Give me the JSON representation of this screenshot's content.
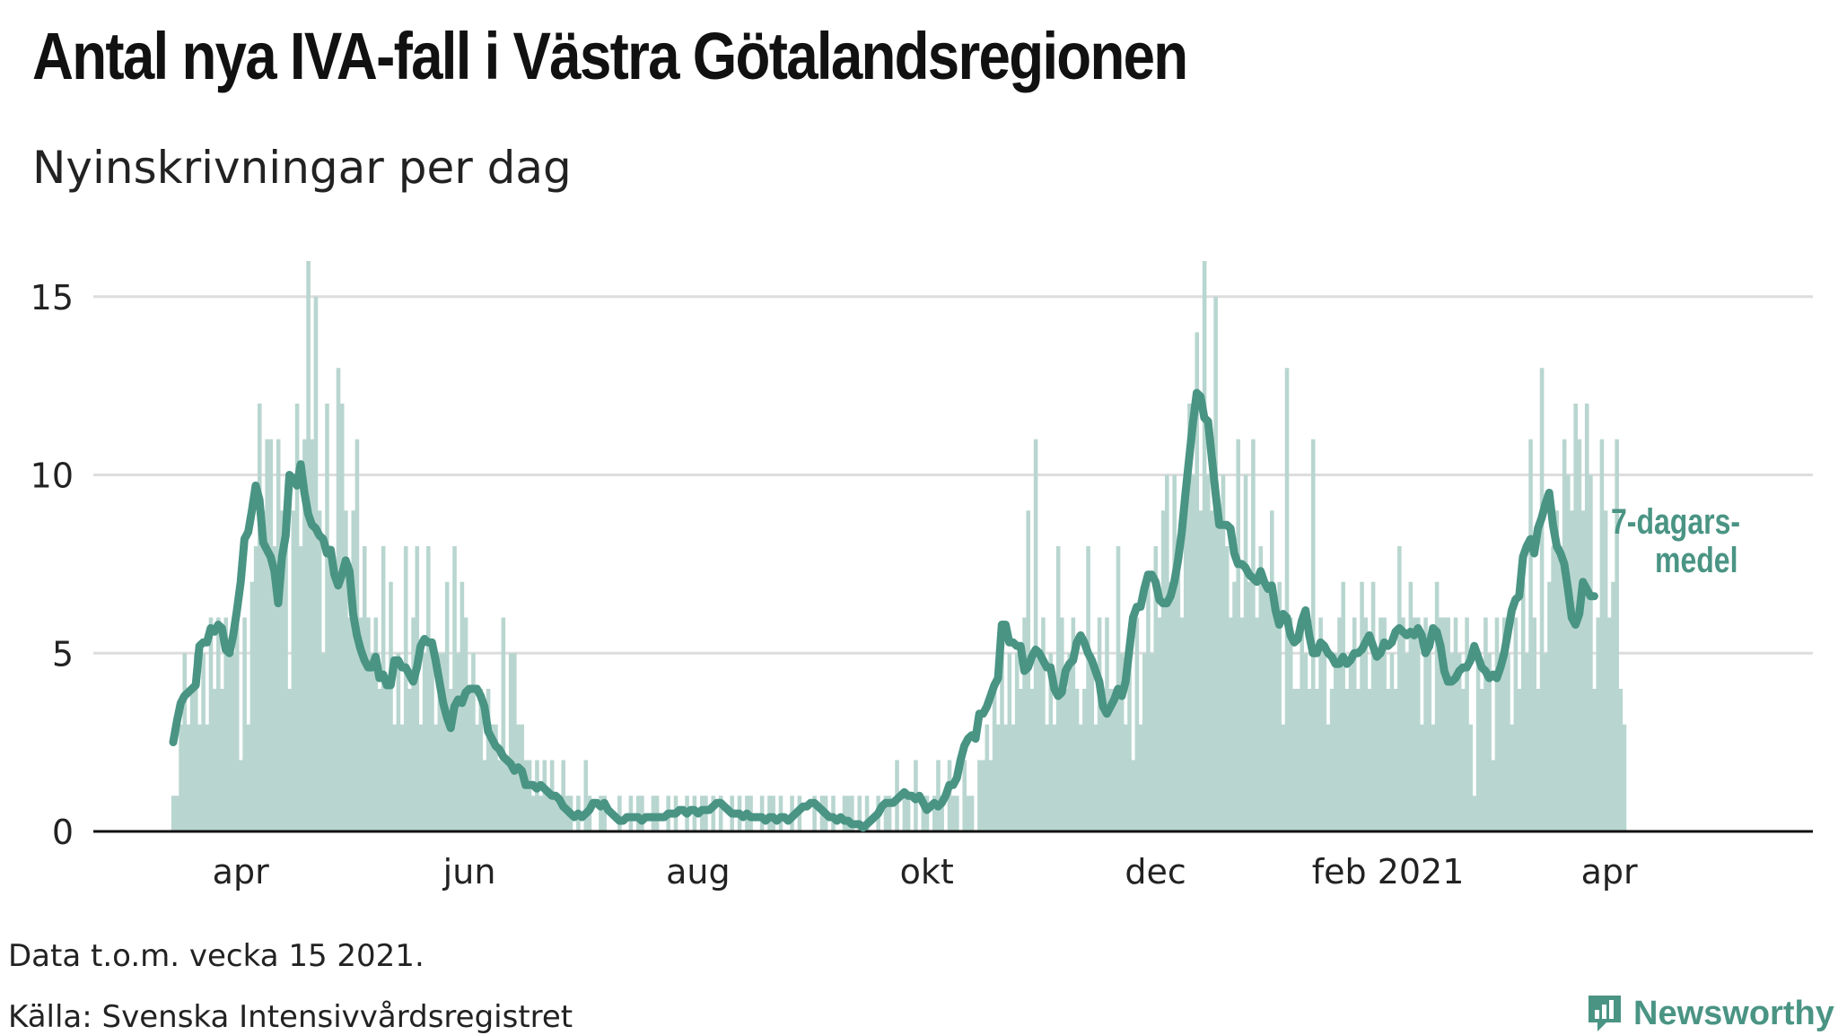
{
  "title": "Antal nya IVA-fall i Västra Götalandsregionen",
  "subtitle": "Nyinskrivningar per dag",
  "chart_data": {
    "type": "bar+line",
    "title": "Antal nya IVA-fall i Västra Götalandsregionen",
    "subtitle": "Nyinskrivningar per dag",
    "xlabel": "",
    "ylabel": "",
    "ylim": [
      0,
      16
    ],
    "yticks": [
      0,
      5,
      10,
      15
    ],
    "xticks": [
      {
        "label": "apr",
        "day": 18
      },
      {
        "label": "jun",
        "day": 79
      },
      {
        "label": "aug",
        "day": 140
      },
      {
        "label": "okt",
        "day": 201
      },
      {
        "label": "dec",
        "day": 262
      },
      {
        "label": "feb 2021",
        "day": 324
      },
      {
        "label": "apr",
        "day": 383
      }
    ],
    "day_range": [
      0,
      405
    ],
    "daily_series": {
      "name": "Nyinskrivningar per dag",
      "values": [
        1,
        1,
        3,
        5,
        3,
        4,
        5,
        3,
        5,
        3,
        6,
        4,
        6,
        4,
        6,
        5,
        5,
        6,
        2,
        6,
        3,
        7,
        8,
        12,
        9,
        11,
        11,
        8,
        11,
        9,
        8,
        4,
        9,
        12,
        8,
        11,
        16,
        11,
        15,
        9,
        5,
        12,
        8,
        7,
        13,
        12,
        9,
        6,
        9,
        11,
        6,
        8,
        6,
        5,
        6,
        4,
        8,
        4,
        7,
        3,
        5,
        3,
        8,
        4,
        6,
        8,
        3,
        5,
        8,
        5,
        3,
        5,
        5,
        7,
        4,
        8,
        5,
        7,
        6,
        4,
        5,
        3,
        4,
        2,
        4,
        3,
        3,
        2,
        6,
        2,
        5,
        5,
        3,
        3,
        2,
        2,
        1,
        2,
        1,
        2,
        1,
        2,
        1,
        1,
        2,
        1,
        1,
        0,
        1,
        0,
        2,
        1,
        0,
        0,
        1,
        1,
        0,
        0,
        0,
        1,
        0,
        0,
        1,
        0,
        1,
        1,
        0,
        0,
        1,
        1,
        0,
        0,
        1,
        0,
        1,
        0,
        0,
        1,
        0,
        1,
        0,
        1,
        1,
        0,
        1,
        0,
        1,
        0,
        0,
        1,
        0,
        1,
        0,
        1,
        1,
        0,
        0,
        1,
        0,
        1,
        1,
        0,
        1,
        0,
        0,
        1,
        0,
        1,
        0,
        0,
        0,
        1,
        0,
        1,
        1,
        0,
        1,
        0,
        0,
        1,
        1,
        1,
        0,
        1,
        0,
        1,
        0,
        0,
        1,
        0,
        1,
        1,
        0,
        2,
        0,
        1,
        1,
        0,
        2,
        0,
        1,
        1,
        0,
        1,
        2,
        1,
        0,
        2,
        1,
        1,
        0,
        2,
        1,
        1,
        0,
        2,
        2,
        3,
        2,
        4,
        3,
        5,
        3,
        5,
        3,
        5,
        4,
        6,
        9,
        4,
        11,
        5,
        6,
        3,
        5,
        3,
        8,
        6,
        4,
        5,
        6,
        4,
        3,
        4,
        8,
        5,
        3,
        6,
        4,
        6,
        4,
        4,
        8,
        5,
        3,
        5,
        2,
        6,
        3,
        5,
        7,
        5,
        8,
        6,
        9,
        10,
        7,
        10,
        8,
        6,
        9,
        12,
        10,
        14,
        9,
        16,
        10,
        9,
        15,
        9,
        10,
        8,
        6,
        7,
        11,
        6,
        10,
        7,
        11,
        6,
        8,
        7,
        7,
        9,
        6,
        7,
        3,
        13,
        6,
        4,
        4,
        6,
        5,
        4,
        11,
        4,
        6,
        5,
        3,
        4,
        5,
        6,
        7,
        4,
        5,
        6,
        4,
        7,
        6,
        4,
        7,
        5,
        6,
        6,
        4,
        5,
        4,
        8,
        6,
        5,
        7,
        6,
        6,
        3,
        6,
        5,
        3,
        7,
        6,
        6,
        6,
        5,
        6,
        5,
        4,
        6,
        3,
        1,
        5,
        4,
        6,
        5,
        2,
        6,
        5,
        6,
        5,
        3,
        6,
        4,
        7,
        5,
        11,
        6,
        4,
        13,
        5,
        7,
        8,
        9,
        8,
        11,
        10,
        9,
        12,
        11,
        9,
        12,
        10,
        4,
        6,
        11,
        9,
        6,
        7,
        11,
        4,
        3
      ],
      "color": "#b8d6cf"
    },
    "average_series": {
      "name": "7-dagarsmedel",
      "values": [
        2.5,
        3.1,
        3.6,
        3.8,
        3.9,
        4.0,
        4.1,
        5.2,
        5.3,
        5.3,
        5.7,
        5.6,
        5.8,
        5.7,
        5.1,
        5.0,
        5.5,
        6.2,
        7.0,
        8.2,
        8.4,
        9.0,
        9.7,
        9.3,
        8.1,
        7.9,
        7.7,
        7.3,
        6.4,
        7.7,
        8.3,
        10.0,
        9.9,
        9.7,
        10.3,
        9.5,
        8.9,
        8.6,
        8.5,
        8.3,
        8.2,
        7.8,
        7.9,
        7.2,
        6.9,
        7.2,
        7.6,
        7.3,
        6.1,
        5.5,
        5.1,
        4.8,
        4.6,
        4.6,
        4.9,
        4.3,
        4.4,
        4.1,
        4.1,
        4.8,
        4.8,
        4.6,
        4.6,
        4.4,
        4.2,
        4.6,
        5.2,
        5.4,
        5.3,
        5.3,
        4.8,
        4.2,
        3.6,
        3.2,
        2.9,
        3.5,
        3.7,
        3.6,
        3.9,
        4.0,
        4.0,
        4.0,
        3.8,
        3.5,
        2.8,
        2.6,
        2.4,
        2.3,
        2.1,
        2.0,
        1.9,
        1.7,
        1.8,
        1.7,
        1.3,
        1.3,
        1.3,
        1.2,
        1.3,
        1.2,
        1.1,
        1.0,
        1.0,
        0.9,
        0.7,
        0.6,
        0.5,
        0.4,
        0.5,
        0.4,
        0.5,
        0.6,
        0.8,
        0.8,
        0.7,
        0.8,
        0.6,
        0.5,
        0.4,
        0.3,
        0.3,
        0.4,
        0.4,
        0.4,
        0.4,
        0.3,
        0.4,
        0.4,
        0.4,
        0.4,
        0.4,
        0.4,
        0.5,
        0.5,
        0.5,
        0.6,
        0.6,
        0.5,
        0.6,
        0.6,
        0.5,
        0.6,
        0.6,
        0.6,
        0.7,
        0.8,
        0.8,
        0.7,
        0.6,
        0.5,
        0.5,
        0.5,
        0.4,
        0.5,
        0.4,
        0.4,
        0.4,
        0.4,
        0.3,
        0.4,
        0.4,
        0.3,
        0.4,
        0.4,
        0.3,
        0.4,
        0.5,
        0.6,
        0.7,
        0.7,
        0.8,
        0.8,
        0.7,
        0.6,
        0.5,
        0.4,
        0.4,
        0.3,
        0.4,
        0.3,
        0.3,
        0.2,
        0.2,
        0.2,
        0.1,
        0.2,
        0.3,
        0.4,
        0.5,
        0.7,
        0.8,
        0.8,
        0.8,
        0.9,
        1.0,
        1.1,
        1.0,
        1.0,
        0.9,
        1.0,
        0.8,
        0.6,
        0.7,
        0.8,
        0.7,
        0.8,
        1.0,
        1.3,
        1.3,
        1.5,
        2.0,
        2.4,
        2.6,
        2.7,
        2.6,
        3.3,
        3.3,
        3.5,
        3.8,
        4.1,
        4.3,
        5.8,
        5.8,
        5.3,
        5.3,
        5.2,
        5.2,
        4.5,
        4.6,
        4.9,
        5.1,
        5.0,
        4.8,
        4.6,
        4.6,
        4.0,
        3.8,
        3.9,
        4.5,
        4.7,
        4.8,
        5.3,
        5.5,
        5.3,
        5.0,
        4.8,
        4.5,
        4.2,
        3.5,
        3.3,
        3.5,
        3.7,
        4.0,
        3.8,
        4.2,
        5.1,
        6.0,
        6.3,
        6.3,
        6.8,
        7.2,
        7.2,
        7.0,
        6.5,
        6.4,
        6.4,
        6.6,
        7.0,
        7.6,
        8.4,
        9.5,
        10.5,
        11.5,
        12.3,
        12.2,
        11.6,
        11.5,
        10.5,
        9.5,
        8.6,
        8.6,
        8.6,
        8.5,
        7.8,
        7.5,
        7.5,
        7.4,
        7.2,
        7.1,
        7.0,
        7.3,
        7.0,
        6.8,
        6.9,
        6.2,
        5.8,
        6.1,
        6.0,
        5.5,
        5.3,
        5.4,
        5.9,
        6.2,
        5.5,
        5.0,
        5.0,
        5.3,
        5.2,
        5.0,
        4.9,
        4.7,
        4.7,
        4.9,
        4.7,
        4.8,
        5.0,
        5.0,
        5.1,
        5.3,
        5.5,
        5.2,
        4.9,
        5.0,
        5.3,
        5.2,
        5.3,
        5.6,
        5.7,
        5.6,
        5.5,
        5.6,
        5.5,
        5.7,
        5.5,
        5.0,
        5.2,
        5.7,
        5.6,
        5.2,
        4.5,
        4.2,
        4.2,
        4.3,
        4.5,
        4.6,
        4.6,
        4.8,
        5.2,
        4.9,
        4.6,
        4.5,
        4.3,
        4.4,
        4.3,
        4.6,
        5.0,
        5.6,
        6.2,
        6.5,
        6.6,
        7.7,
        8.0,
        8.2,
        7.8,
        8.5,
        8.8,
        9.2,
        9.5,
        8.6,
        8.0,
        7.8,
        7.5,
        6.8,
        6.0,
        5.8,
        6.1,
        7.0,
        6.8,
        6.6,
        6.6
      ],
      "color": "#4a9484",
      "label_line1": "7-dagars-",
      "label_line2": "medel"
    }
  },
  "footer": {
    "note": "Data t.o.m. vecka 15 2021.",
    "source": "Källa: Svenska Intensivvårdsregistret",
    "brand": "Newsworthy"
  },
  "colors": {
    "bar": "#b8d6cf",
    "line": "#4a9484",
    "grid": "#dddddd",
    "axis": "#111111",
    "brand": "#4a9484"
  }
}
